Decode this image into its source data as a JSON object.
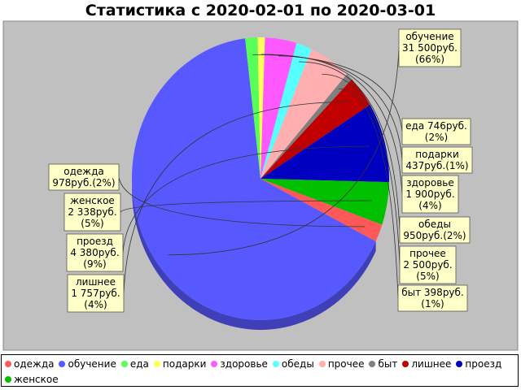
{
  "chart_data": {
    "type": "pie",
    "title": "Статистика с 2020-02-01 по 2020-03-01",
    "slices": [
      {
        "name": "обучение",
        "value": 31500,
        "label": [
          "обучение",
          "31 500руб.",
          "(66%)"
        ],
        "color": "#5858ff"
      },
      {
        "name": "еда",
        "value": 746,
        "label": [
          "еда 746руб.",
          "(2%)"
        ],
        "color": "#58ff58"
      },
      {
        "name": "подарки",
        "value": 437,
        "label": [
          "подарки",
          "437руб.(1%)"
        ],
        "color": "#ffff58"
      },
      {
        "name": "здоровье",
        "value": 1900,
        "label": [
          "здоровье",
          "1 900руб.",
          "(4%)"
        ],
        "color": "#ff58ff"
      },
      {
        "name": "обеды",
        "value": 950,
        "label": [
          "обеды",
          "950руб.(2%)"
        ],
        "color": "#58ffff"
      },
      {
        "name": "прочее",
        "value": 2500,
        "label": [
          "прочее",
          "2 500руб.",
          "(5%)"
        ],
        "color": "#ffafaf"
      },
      {
        "name": "быт",
        "value": 398,
        "label": [
          "быт 398руб.",
          "(1%)"
        ],
        "color": "#808080"
      },
      {
        "name": "лишнее",
        "value": 1757,
        "label": [
          "лишнее",
          "1 757руб.",
          "(4%)"
        ],
        "color": "#c00000"
      },
      {
        "name": "проезд",
        "value": 4380,
        "label": [
          "проезд",
          "4 380руб.",
          "(9%)"
        ],
        "color": "#0000c0"
      },
      {
        "name": "женское",
        "value": 2338,
        "label": [
          "женское",
          "2 338руб.",
          "(5%)"
        ],
        "color": "#00c000"
      },
      {
        "name": "одежда",
        "value": 978,
        "label": [
          "одежда",
          "978руб.(2%)"
        ],
        "color": "#ff5858"
      }
    ],
    "legend": {
      "placement": "bottom",
      "entries": [
        {
          "name": "одежда",
          "color": "#ff5858"
        },
        {
          "name": "обучение",
          "color": "#5858ff"
        },
        {
          "name": "еда",
          "color": "#58ff58"
        },
        {
          "name": "подарки",
          "color": "#ffff58"
        },
        {
          "name": "здоровье",
          "color": "#ff58ff"
        },
        {
          "name": "обеды",
          "color": "#58ffff"
        },
        {
          "name": "прочее",
          "color": "#ffafaf"
        },
        {
          "name": "быт",
          "color": "#808080"
        },
        {
          "name": "лишнее",
          "color": "#c00000"
        },
        {
          "name": "проезд",
          "color": "#0000c0"
        },
        {
          "name": "женское",
          "color": "#00c000"
        }
      ]
    },
    "plot_background": "#c0c0c0"
  }
}
